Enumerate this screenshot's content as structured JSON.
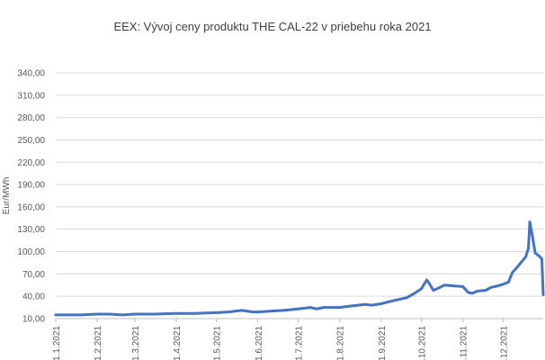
{
  "chart_data": {
    "type": "line",
    "title": "EEX: Vývoj ceny produktu THE CAL-22 v priebehu roka 2021",
    "ylabel": "Eur/MWh",
    "xlabel": "",
    "ylim": [
      10,
      340
    ],
    "y_ticks": [
      "340,00",
      "310,00",
      "280,00",
      "250,00",
      "220,00",
      "190,00",
      "160,00",
      "130,00",
      "100,00",
      "70,00",
      "40,00",
      "10,00"
    ],
    "x_ticks": [
      "1.1.2021",
      "1.2.2021",
      "1.3.2021",
      "1.4.2021",
      "1.5.2021",
      "1.6.2021",
      "1.7.2021",
      "1.8.2021",
      "1.9.2021",
      "1.10.2021",
      "1.11.2021",
      "1.12.2021"
    ],
    "grid": true,
    "line_color": "#4472C4",
    "series": [
      {
        "x": [
          "2021-01-01",
          "2021-01-10",
          "2021-01-20",
          "2021-02-01",
          "2021-02-10",
          "2021-02-20",
          "2021-03-01",
          "2021-03-15",
          "2021-04-01",
          "2021-04-15",
          "2021-05-01",
          "2021-05-10",
          "2021-05-20",
          "2021-05-28",
          "2021-06-01",
          "2021-06-10",
          "2021-06-20",
          "2021-07-01",
          "2021-07-10",
          "2021-07-15",
          "2021-07-20",
          "2021-08-01",
          "2021-08-10",
          "2021-08-20",
          "2021-08-25",
          "2021-09-01",
          "2021-09-10",
          "2021-09-20",
          "2021-09-25",
          "2021-10-01",
          "2021-10-05",
          "2021-10-07",
          "2021-10-10",
          "2021-10-15",
          "2021-10-18",
          "2021-10-25",
          "2021-11-01",
          "2021-11-05",
          "2021-11-08",
          "2021-11-12",
          "2021-11-18",
          "2021-11-22",
          "2021-11-25",
          "2021-12-01",
          "2021-12-05",
          "2021-12-08",
          "2021-12-12",
          "2021-12-18",
          "2021-12-20",
          "2021-12-21",
          "2021-12-23",
          "2021-12-25",
          "2021-12-28",
          "2021-12-30",
          "2021-12-31"
        ],
        "y": [
          15,
          15,
          15,
          16,
          16,
          15,
          16,
          16,
          17,
          17,
          18,
          19,
          21,
          19,
          19,
          20,
          21,
          23,
          25,
          23,
          25,
          25,
          27,
          29,
          28,
          30,
          34,
          38,
          43,
          50,
          62,
          57,
          48,
          52,
          55,
          54,
          53,
          45,
          44,
          47,
          48,
          52,
          53,
          56,
          59,
          72,
          80,
          93,
          105,
          140,
          120,
          98,
          94,
          90,
          42
        ]
      }
    ]
  }
}
